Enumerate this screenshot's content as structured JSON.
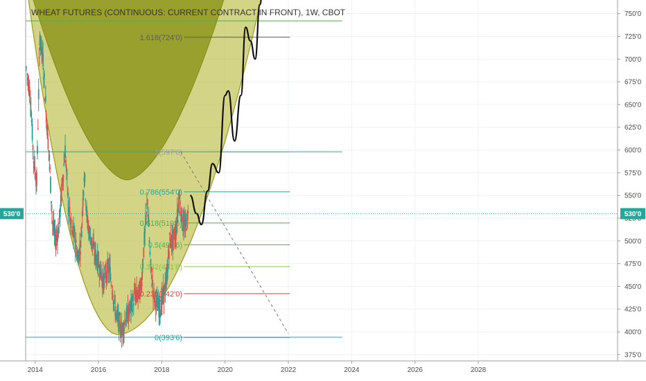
{
  "chart_data": {
    "type": "line",
    "title": "WHEAT FUTURES (CONTINUOUS: CURRENT CONTRACT IN FRONT), 1W, CBOT",
    "x_ticks": [
      "2014",
      "2016",
      "2018",
      "2020",
      "2022",
      "2024",
      "2026",
      "2028"
    ],
    "y_ticks": [
      "375'0",
      "400'0",
      "425'0",
      "450'0",
      "475'0",
      "500'0",
      "525'0",
      "550'0",
      "575'0",
      "600'0",
      "625'0",
      "650'0",
      "675'0",
      "700'0",
      "725'0",
      "750'0"
    ],
    "xlim": [
      2013.7,
      2032.4
    ],
    "ylim": [
      368,
      765
    ],
    "grid": true,
    "current_price": {
      "label": "530'0",
      "value": 530,
      "color": "#26a69a"
    },
    "fib_levels": [
      {
        "label": "1.618(724'0)",
        "value": 724,
        "color": "#5d5d5d"
      },
      {
        "label": "1(597'6)",
        "value": 597.75,
        "color": "#9e9e9e"
      },
      {
        "label": "0.786(554'0)",
        "value": 554,
        "color": "#26a69a"
      },
      {
        "label": "0.618(519'6)",
        "value": 519.75,
        "color": "#4caf50"
      },
      {
        "label": "0.5(495'6)",
        "value": 495.75,
        "color": "#4caf50"
      },
      {
        "label": "0.382(471'6)",
        "value": 471.75,
        "color": "#8bc34a"
      },
      {
        "label": "0.236(442'0)",
        "value": 442,
        "color": "#e53935"
      },
      {
        "label": "0(393'6)",
        "value": 393.75,
        "color": "#26a69a"
      }
    ],
    "horizontal_lines": [
      {
        "value": 742,
        "color": "#4caf50"
      },
      {
        "value": 598,
        "color": "#26a69a"
      },
      {
        "value": 394,
        "color": "#26a69a"
      }
    ],
    "price_series": {
      "name": "",
      "x": [
        2013.72,
        2013.85,
        2013.95,
        2014.05,
        2014.15,
        2014.25,
        2014.35,
        2014.45,
        2014.55,
        2014.65,
        2014.75,
        2014.85,
        2014.95,
        2015.05,
        2015.15,
        2015.25,
        2015.35,
        2015.45,
        2015.55,
        2015.65,
        2015.75,
        2015.85,
        2015.95,
        2016.05,
        2016.15,
        2016.25,
        2016.35,
        2016.45,
        2016.55,
        2016.65,
        2016.75,
        2016.85,
        2016.95,
        2017.05,
        2017.15,
        2017.25,
        2017.35,
        2017.45,
        2017.55,
        2017.65,
        2017.75,
        2017.85,
        2017.95,
        2018.05,
        2018.15,
        2018.25,
        2018.35,
        2018.45,
        2018.55,
        2018.65,
        2018.75,
        2018.85
      ],
      "y": [
        690,
        660,
        590,
        565,
        725,
        700,
        640,
        590,
        520,
        500,
        515,
        560,
        600,
        540,
        510,
        505,
        480,
        500,
        575,
        520,
        505,
        490,
        480,
        470,
        455,
        465,
        470,
        445,
        420,
        410,
        400,
        415,
        420,
        430,
        440,
        440,
        450,
        500,
        545,
        470,
        440,
        430,
        425,
        440,
        455,
        500,
        500,
        510,
        550,
        520,
        515,
        530
      ]
    },
    "projection_path": {
      "x": [
        2018.9,
        2019.1,
        2019.25,
        2019.45,
        2019.6,
        2019.8,
        2020.0,
        2020.1,
        2020.3,
        2020.5,
        2020.65,
        2020.8,
        2020.95,
        2021.1,
        2021.2
      ],
      "y": [
        550,
        530,
        518,
        555,
        585,
        575,
        660,
        665,
        610,
        660,
        735,
        720,
        700,
        760,
        780
      ]
    },
    "dashed_trend": {
      "x": [
        2018.6,
        2022.0
      ],
      "y": [
        598,
        398
      ]
    },
    "arcs": [
      {
        "color": "#8f961e",
        "opacity": 0.85
      },
      {
        "color": "#b5b834",
        "opacity": 0.6
      }
    ]
  }
}
